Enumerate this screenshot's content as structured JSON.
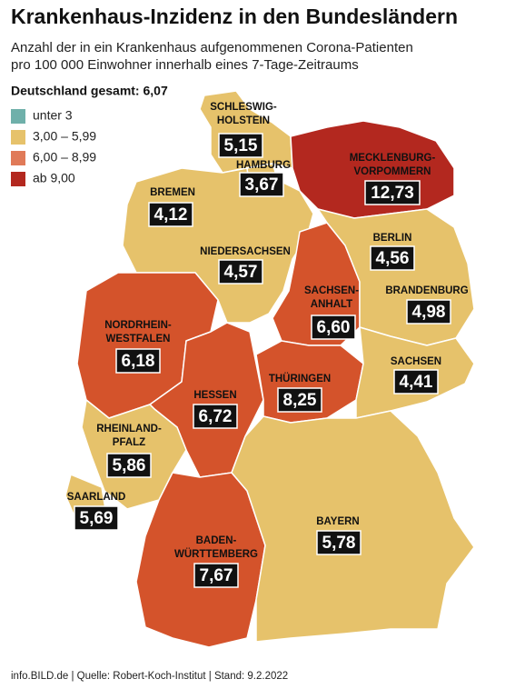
{
  "header": {
    "title": "Krankenhaus-Inzidenz in den Bundesländern",
    "subtitle": [
      "Anzahl der in ein Krankenhaus aufgenommenen Corona-Patienten",
      "pro 100 000 Einwohner innerhalb eines 7-Tage-Zeitraums"
    ],
    "total": "Deutschland gesamt: 6,07"
  },
  "legend": [
    {
      "label": "unter 3",
      "color": "#6fb0aa"
    },
    {
      "label": "3,00 – 5,99",
      "color": "#e6c26b"
    },
    {
      "label": "6,00 – 8,99",
      "color": "#e07a58"
    },
    {
      "label": "ab 9,00",
      "color": "#b3281f"
    }
  ],
  "states": [
    {
      "name": [
        "SCHLESWIG-",
        "HOLSTEIN"
      ],
      "value": "5,15",
      "color": "#e6c26b"
    },
    {
      "name": [
        "HAMBURG"
      ],
      "value": "3,67",
      "color": "#e6c26b"
    },
    {
      "name": [
        "MECKLENBURG-",
        "VORPOMMERN"
      ],
      "value": "12,73",
      "color": "#b3281f"
    },
    {
      "name": [
        "BREMEN"
      ],
      "value": "4,12",
      "color": "#e6c26b"
    },
    {
      "name": [
        "NIEDERSACHSEN"
      ],
      "value": "4,57",
      "color": "#e6c26b"
    },
    {
      "name": [
        "BERLIN"
      ],
      "value": "4,56",
      "color": "#e6c26b"
    },
    {
      "name": [
        "SACHSEN-",
        "ANHALT"
      ],
      "value": "6,60",
      "color": "#d4532b"
    },
    {
      "name": [
        "BRANDENBURG"
      ],
      "value": "4,98",
      "color": "#e6c26b"
    },
    {
      "name": [
        "NORDRHEIN-",
        "WESTFALEN"
      ],
      "value": "6,18",
      "color": "#d4532b"
    },
    {
      "name": [
        "HESSEN"
      ],
      "value": "6,72",
      "color": "#d4532b"
    },
    {
      "name": [
        "THÜRINGEN"
      ],
      "value": "8,25",
      "color": "#d4532b"
    },
    {
      "name": [
        "SACHSEN"
      ],
      "value": "4,41",
      "color": "#e6c26b"
    },
    {
      "name": [
        "RHEINLAND-",
        "PFALZ"
      ],
      "value": "5,86",
      "color": "#e6c26b"
    },
    {
      "name": [
        "SAARLAND"
      ],
      "value": "5,69",
      "color": "#e6c26b"
    },
    {
      "name": [
        "BADEN-",
        "WÜRTTEMBERG"
      ],
      "value": "7,67",
      "color": "#d4532b"
    },
    {
      "name": [
        "BAYERN"
      ],
      "value": "5,78",
      "color": "#e6c26b"
    }
  ],
  "footer": "info.BILD.de | Quelle: Robert-Koch-Institut | Stand: 9.2.2022"
}
